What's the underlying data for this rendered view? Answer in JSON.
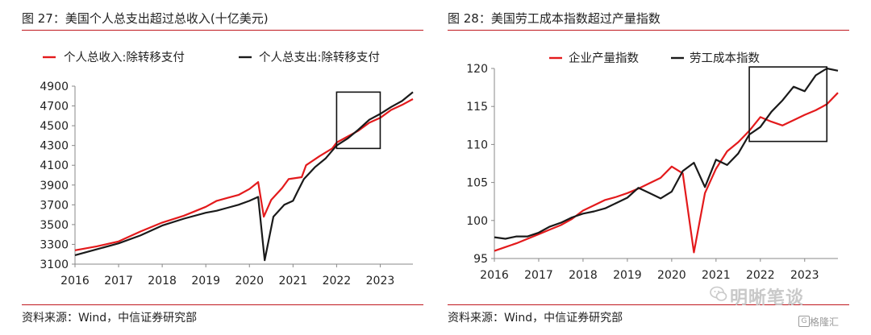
{
  "left_panel": {
    "title": "图 27：美国个人总支出超过总收入(十亿美元)",
    "source": "资料来源：Wind，中信证券研究部"
  },
  "right_panel": {
    "title": "图 28：美国劳工成本指数超过产量指数",
    "source": "资料来源：Wind，中信证券研究部"
  },
  "watermark": {
    "text": "明晰笔谈",
    "badge": "格隆汇",
    "badge_glyph": "G"
  },
  "colors": {
    "red": "#e31a1c",
    "black": "#1a1a1a",
    "rule": "#c0181f"
  },
  "chart_data": [
    {
      "type": "line",
      "title": "",
      "xlabel": "",
      "ylabel": "",
      "xlim": [
        2016.0,
        2023.75
      ],
      "ylim": [
        3100,
        4900
      ],
      "xticks": [
        "2016",
        "2017",
        "2018",
        "2019",
        "2020",
        "2021",
        "2022",
        "2023"
      ],
      "yticks": [
        "3100",
        "3300",
        "3500",
        "3700",
        "3900",
        "4100",
        "4300",
        "4500",
        "4700",
        "4900"
      ],
      "grid": false,
      "legend": "top",
      "annotation_box": {
        "x": [
          2022.0,
          2023.0
        ],
        "y": [
          4270,
          4840
        ]
      },
      "series": [
        {
          "name": "个人总收入:除转移支付",
          "color": "#e31a1c",
          "points": [
            [
              2016.0,
              3240
            ],
            [
              2016.5,
              3280
            ],
            [
              2017.0,
              3330
            ],
            [
              2017.5,
              3430
            ],
            [
              2018.0,
              3520
            ],
            [
              2018.5,
              3590
            ],
            [
              2019.0,
              3680
            ],
            [
              2019.25,
              3740
            ],
            [
              2019.5,
              3770
            ],
            [
              2019.75,
              3800
            ],
            [
              2020.0,
              3860
            ],
            [
              2020.2,
              3930
            ],
            [
              2020.33,
              3580
            ],
            [
              2020.5,
              3750
            ],
            [
              2020.75,
              3870
            ],
            [
              2020.9,
              3960
            ],
            [
              2021.2,
              3980
            ],
            [
              2021.3,
              4100
            ],
            [
              2021.6,
              4190
            ],
            [
              2021.9,
              4270
            ],
            [
              2022.0,
              4330
            ],
            [
              2022.25,
              4390
            ],
            [
              2022.5,
              4450
            ],
            [
              2022.75,
              4530
            ],
            [
              2023.0,
              4580
            ],
            [
              2023.25,
              4660
            ],
            [
              2023.5,
              4710
            ],
            [
              2023.75,
              4770
            ]
          ]
        },
        {
          "name": "个人总支出:除转移支付",
          "color": "#1a1a1a",
          "points": [
            [
              2016.0,
              3190
            ],
            [
              2016.5,
              3250
            ],
            [
              2017.0,
              3310
            ],
            [
              2017.5,
              3390
            ],
            [
              2018.0,
              3490
            ],
            [
              2018.5,
              3560
            ],
            [
              2019.0,
              3620
            ],
            [
              2019.25,
              3640
            ],
            [
              2019.5,
              3670
            ],
            [
              2019.75,
              3700
            ],
            [
              2020.0,
              3740
            ],
            [
              2020.2,
              3780
            ],
            [
              2020.35,
              3140
            ],
            [
              2020.55,
              3580
            ],
            [
              2020.8,
              3700
            ],
            [
              2021.0,
              3740
            ],
            [
              2021.1,
              3830
            ],
            [
              2021.25,
              3960
            ],
            [
              2021.5,
              4080
            ],
            [
              2021.75,
              4170
            ],
            [
              2022.0,
              4300
            ],
            [
              2022.25,
              4370
            ],
            [
              2022.5,
              4460
            ],
            [
              2022.75,
              4560
            ],
            [
              2023.0,
              4620
            ],
            [
              2023.25,
              4690
            ],
            [
              2023.5,
              4750
            ],
            [
              2023.75,
              4840
            ]
          ]
        }
      ]
    },
    {
      "type": "line",
      "title": "",
      "xlabel": "",
      "ylabel": "",
      "xlim": [
        2016.0,
        2023.75
      ],
      "ylim": [
        95,
        120
      ],
      "xticks": [
        "2016",
        "2017",
        "2018",
        "2019",
        "2020",
        "2021",
        "2022",
        "2023"
      ],
      "yticks": [
        "95",
        "100",
        "105",
        "110",
        "115",
        "120"
      ],
      "grid": false,
      "legend": "top",
      "annotation_box": {
        "x": [
          2021.75,
          2023.5
        ],
        "y": [
          110.4,
          120.2
        ]
      },
      "series": [
        {
          "name": "企业产量指数",
          "color": "#e31a1c",
          "points": [
            [
              2016.0,
              96.0
            ],
            [
              2016.25,
              96.5
            ],
            [
              2016.5,
              97.0
            ],
            [
              2016.75,
              97.6
            ],
            [
              2017.0,
              98.2
            ],
            [
              2017.25,
              98.8
            ],
            [
              2017.5,
              99.4
            ],
            [
              2017.75,
              100.2
            ],
            [
              2018.0,
              101.3
            ],
            [
              2018.25,
              102.0
            ],
            [
              2018.5,
              102.7
            ],
            [
              2018.75,
              103.1
            ],
            [
              2019.0,
              103.6
            ],
            [
              2019.25,
              104.2
            ],
            [
              2019.5,
              104.9
            ],
            [
              2019.75,
              105.6
            ],
            [
              2020.0,
              107.1
            ],
            [
              2020.25,
              106.2
            ],
            [
              2020.5,
              95.8
            ],
            [
              2020.75,
              103.6
            ],
            [
              2021.0,
              106.8
            ],
            [
              2021.25,
              109.1
            ],
            [
              2021.5,
              110.3
            ],
            [
              2021.75,
              111.8
            ],
            [
              2022.0,
              113.6
            ],
            [
              2022.25,
              113.0
            ],
            [
              2022.5,
              112.5
            ],
            [
              2022.75,
              113.2
            ],
            [
              2023.0,
              113.9
            ],
            [
              2023.25,
              114.5
            ],
            [
              2023.5,
              115.3
            ],
            [
              2023.75,
              116.8
            ]
          ]
        },
        {
          "name": "劳工成本指数",
          "color": "#1a1a1a",
          "points": [
            [
              2016.0,
              97.8
            ],
            [
              2016.25,
              97.6
            ],
            [
              2016.5,
              97.9
            ],
            [
              2016.75,
              97.9
            ],
            [
              2017.0,
              98.4
            ],
            [
              2017.25,
              99.2
            ],
            [
              2017.5,
              99.7
            ],
            [
              2017.75,
              100.4
            ],
            [
              2018.0,
              100.9
            ],
            [
              2018.25,
              101.2
            ],
            [
              2018.5,
              101.6
            ],
            [
              2018.75,
              102.3
            ],
            [
              2019.0,
              103.0
            ],
            [
              2019.25,
              104.3
            ],
            [
              2019.5,
              103.6
            ],
            [
              2019.75,
              102.9
            ],
            [
              2020.0,
              103.8
            ],
            [
              2020.25,
              106.5
            ],
            [
              2020.5,
              107.6
            ],
            [
              2020.75,
              104.4
            ],
            [
              2021.0,
              108.0
            ],
            [
              2021.25,
              107.3
            ],
            [
              2021.5,
              108.8
            ],
            [
              2021.75,
              111.3
            ],
            [
              2022.0,
              112.3
            ],
            [
              2022.25,
              114.3
            ],
            [
              2022.5,
              115.8
            ],
            [
              2022.75,
              117.6
            ],
            [
              2023.0,
              117.0
            ],
            [
              2023.25,
              119.1
            ],
            [
              2023.5,
              120.0
            ],
            [
              2023.75,
              119.7
            ]
          ]
        }
      ]
    }
  ]
}
